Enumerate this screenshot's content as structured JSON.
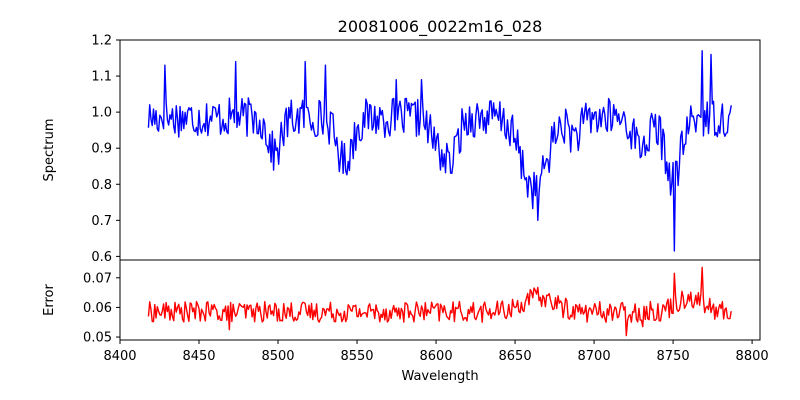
{
  "chart_data": {
    "title": "20081006_0022m16_028",
    "xlabel": "Wavelength",
    "xlim": [
      8400,
      8805
    ],
    "xticks": [
      8400,
      8450,
      8500,
      8550,
      8600,
      8650,
      8700,
      8750,
      8800
    ],
    "wavelength_range": [
      8418,
      8787
    ],
    "grid": false,
    "panels": [
      {
        "name": "spectrum",
        "type": "line",
        "ylabel": "Spectrum",
        "ylim": [
          0.59,
          1.2
        ],
        "yticks": [
          0.6,
          0.7,
          0.8,
          0.9,
          1.0,
          1.1,
          1.2
        ],
        "ytick_labels": [
          "0.6",
          "0.7",
          "0.8",
          "0.9",
          "1.0",
          "1.1",
          "1.2"
        ],
        "color": "#0000ff",
        "noise_amplitude": 0.055,
        "features": [
          {
            "center": 8498,
            "depth": 0.1,
            "width": 4
          },
          {
            "center": 8542,
            "depth": 0.12,
            "width": 5
          },
          {
            "center": 8603,
            "depth": 0.08,
            "width": 6
          },
          {
            "center": 8610,
            "depth": 0.08,
            "width": 4
          },
          {
            "center": 8662,
            "depth": 0.2,
            "width": 8
          },
          {
            "center": 8688,
            "depth": 0.05,
            "width": 4
          },
          {
            "center": 8730,
            "depth": 0.08,
            "width": 5
          },
          {
            "center": 8750,
            "depth": 0.17,
            "width": 5
          }
        ],
        "spikes": [
          {
            "x": 8751,
            "y": 0.615
          },
          {
            "x": 8768,
            "y": 1.17
          },
          {
            "x": 8774,
            "y": 1.16
          },
          {
            "x": 8428,
            "y": 1.13
          },
          {
            "x": 8473,
            "y": 1.14
          },
          {
            "x": 8517,
            "y": 1.14
          },
          {
            "x": 8530,
            "y": 1.13
          },
          {
            "x": 8575,
            "y": 1.09
          },
          {
            "x": 8591,
            "y": 1.09
          },
          {
            "x": 8664,
            "y": 0.7
          }
        ]
      },
      {
        "name": "error",
        "type": "line",
        "ylabel": "Error",
        "ylim": [
          0.049,
          0.076
        ],
        "yticks": [
          0.05,
          0.06,
          0.07
        ],
        "ytick_labels": [
          "0.05",
          "0.06",
          "0.07"
        ],
        "color": "#ff0000",
        "noise_amplitude": 0.0035,
        "features": [
          {
            "center": 8665,
            "depth": -0.005,
            "width": 10
          },
          {
            "center": 8760,
            "depth": -0.005,
            "width": 8
          }
        ],
        "spikes": [
          {
            "x": 8751,
            "y": 0.0715
          },
          {
            "x": 8768,
            "y": 0.0735
          },
          {
            "x": 8720,
            "y": 0.0505
          },
          {
            "x": 8731,
            "y": 0.0535
          },
          {
            "x": 8469,
            "y": 0.0525
          }
        ]
      }
    ]
  }
}
